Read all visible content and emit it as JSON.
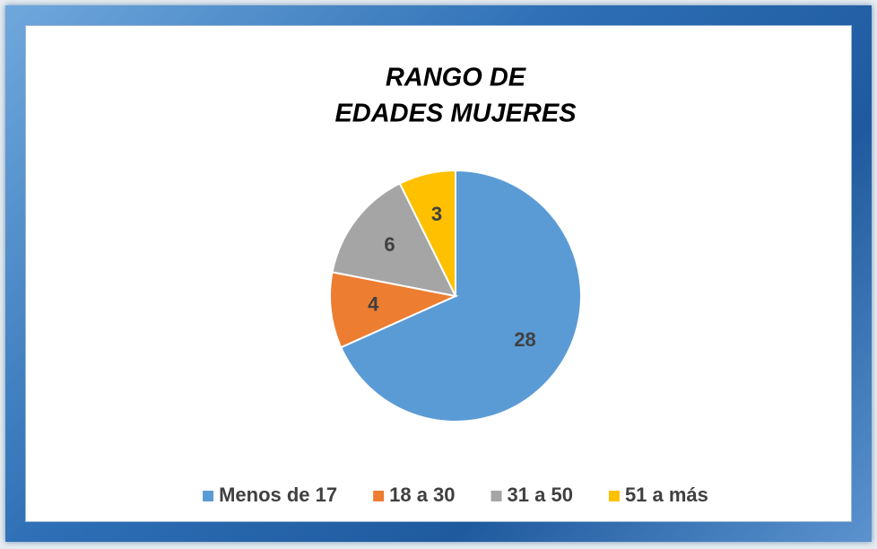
{
  "chart_data": {
    "type": "pie",
    "title": [
      "RANGO DE",
      "EDADES MUJERES"
    ],
    "categories": [
      "Menos de 17",
      "18 a 30",
      "31 a 50",
      "51 a más"
    ],
    "values": [
      28,
      4,
      6,
      3
    ],
    "colors": [
      "#5b9bd5",
      "#ed7d31",
      "#a5a5a5",
      "#ffc000"
    ],
    "legend": "bottom"
  }
}
